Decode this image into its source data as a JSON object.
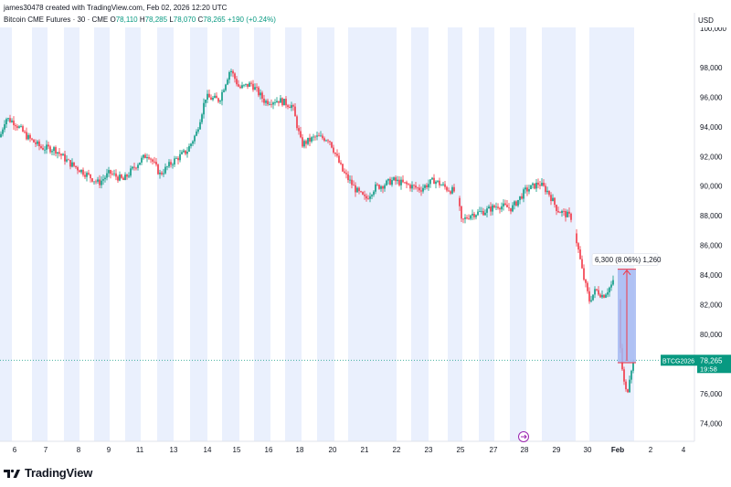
{
  "header": {
    "attribution": "james30478 created with TradingView.com, Feb 02, 2026 12:20 UTC"
  },
  "legend": {
    "symbol": "Bitcoin CME Futures · 30 · CME",
    "open_label": "O",
    "open": "78,110",
    "high_label": "H",
    "high": "78,285",
    "low_label": "L",
    "low": "78,070",
    "close_label": "C",
    "close": "78,265",
    "change": "+190 (+0.24%)"
  },
  "price_axis": {
    "currency": "USD",
    "ticks": [
      "74,000",
      "76,000",
      "78,000",
      "80,000",
      "82,000",
      "84,000",
      "86,000",
      "88,000",
      "90,000",
      "92,000",
      "94,000",
      "96,000",
      "98,000"
    ]
  },
  "time_axis": {
    "ticks": [
      "6",
      "7",
      "8",
      "9",
      "11",
      "13",
      "14",
      "15",
      "16",
      "18",
      "20",
      "21",
      "22",
      "23",
      "25",
      "27",
      "28",
      "29",
      "30",
      "Feb",
      "2",
      "4"
    ]
  },
  "current_price": {
    "ticker": "BTCG2026",
    "price": "78,265",
    "countdown": "19:58"
  },
  "measure": {
    "label": "6,300 (8.06%) 1,260"
  },
  "footer": {
    "brand": "TradingView"
  },
  "colors": {
    "up": "#089981",
    "down": "#f23645",
    "session_shade": "#eaf0fd",
    "measure_fill": "#a4b9f2",
    "measure_line": "#f23645"
  },
  "chart_data": {
    "type": "line",
    "title": "Bitcoin CME Futures · 30 · CME",
    "ylabel": "USD",
    "ylim": [
      72800,
      100700
    ],
    "candles": "OHLC 30-minute candles, approximate path",
    "x": [
      "6",
      "7",
      "8",
      "9",
      "11",
      "13",
      "14",
      "15",
      "16",
      "18",
      "20",
      "21",
      "22",
      "23",
      "25",
      "27",
      "28",
      "29",
      "30",
      "Feb"
    ],
    "series": [
      {
        "values": [
          93800,
          92400,
          91200,
          90800,
          92100,
          92700,
          97000,
          96300,
          95700,
          93200,
          88900,
          90100,
          90300,
          90000,
          87900,
          88500,
          89300,
          87500,
          83200,
          78265
        ]
      }
    ],
    "measurement": {
      "from": 78100,
      "to": 84400,
      "change": 6300,
      "change_pct": 8.06,
      "bars": 1260
    }
  }
}
